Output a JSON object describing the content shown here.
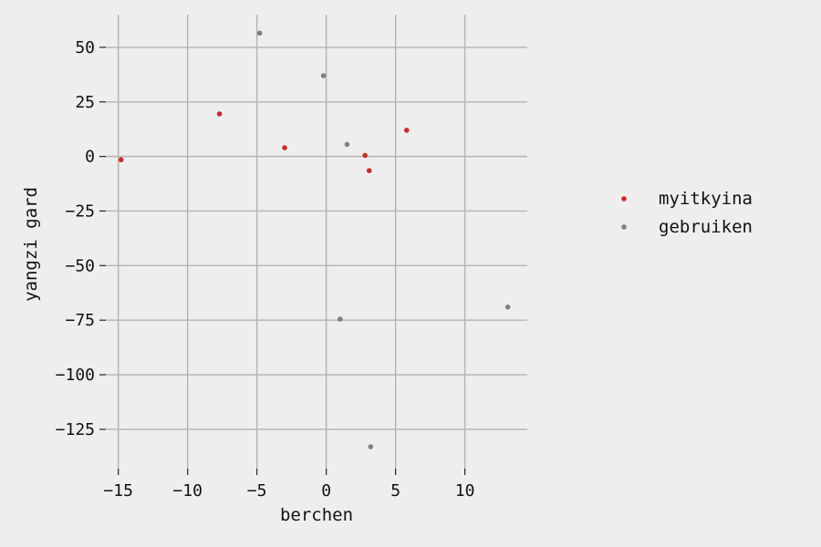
{
  "chart_data": {
    "type": "scatter",
    "xlabel": "berchen",
    "ylabel": "yangzi gard",
    "xlim": [
      -15.9,
      14.5
    ],
    "ylim": [
      -143,
      65
    ],
    "x_ticks": [
      -15,
      -10,
      -5,
      0,
      5,
      10
    ],
    "y_ticks": [
      50,
      25,
      0,
      -25,
      -50,
      -75,
      -100,
      -125
    ],
    "x_tick_labels": [
      "−15",
      "−10",
      "−5",
      "0",
      "5",
      "10"
    ],
    "y_tick_labels": [
      "50",
      "25",
      "0",
      "−25",
      "−50",
      "−75",
      "−100",
      "−125"
    ],
    "grid": true,
    "legend_position": "right",
    "series": [
      {
        "name": "myitkyina",
        "color": "#cc2a2a",
        "points": [
          {
            "x": -14.8,
            "y": -1.5
          },
          {
            "x": -7.7,
            "y": 19.5
          },
          {
            "x": -3.0,
            "y": 4.0
          },
          {
            "x": 2.8,
            "y": 0.5
          },
          {
            "x": 3.1,
            "y": -6.5
          },
          {
            "x": 5.8,
            "y": 12.0
          }
        ]
      },
      {
        "name": "gebruiken",
        "color": "#808080",
        "points": [
          {
            "x": -4.8,
            "y": 56.5
          },
          {
            "x": -0.2,
            "y": 37.0
          },
          {
            "x": 1.5,
            "y": 5.5
          },
          {
            "x": 1.0,
            "y": -74.5
          },
          {
            "x": 13.1,
            "y": -69.0
          },
          {
            "x": 3.2,
            "y": -133.0
          }
        ]
      }
    ]
  }
}
